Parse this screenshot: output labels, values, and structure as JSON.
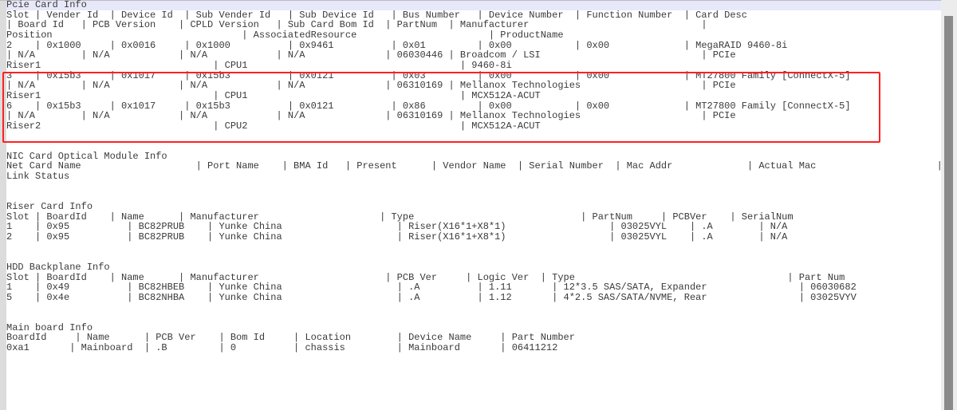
{
  "colors": {
    "highlight_box": "#ff2020",
    "current_line": "#e8e8fb",
    "text": "#3a3a3a"
  },
  "lines": [
    "Pcie Card Info",
    "Slot | Vender Id  | Device Id  | Sub Vender Id   | Sub Device Id   | Bus Number   | Device Number  | Function Number  | Card Desc",
    "| Board Id   | PCB Version    | CPLD Version   | Sub Card Bom Id  | PartNum  | Manufacturer                              | ",
    "Position                                 | AssociatedResource                       | ProductName",
    "2    | 0x1000     | 0x0016     | 0x1000          | 0x9461          | 0x01         | 0x00           | 0x00             | MegaRAID 9460-8i",
    "| N/A        | N/A            | N/A            | N/A              | 06030446 | Broadcom / LSI                            | PCIe",
    "Riser1                              | CPU1                                     | 9460-8i",
    "3    | 0x15b3     | 0x1017     | 0x15b3          | 0x0121          | 0x03         | 0x00           | 0x00             | MT27800 Family [ConnectX-5]",
    "| N/A        | N/A            | N/A            | N/A              | 06310169 | Mellanox Technologies                     | PCIe",
    "Riser1                              | CPU1                                     | MCX512A-ACUT",
    "6    | 0x15b3     | 0x1017     | 0x15b3          | 0x0121          | 0x86         | 0x00           | 0x00             | MT27800 Family [ConnectX-5]",
    "| N/A        | N/A            | N/A            | N/A              | 06310169 | Mellanox Technologies                     | PCIe",
    "Riser2                              | CPU2                                     | MCX512A-ACUT",
    "",
    "",
    "NIC Card Optical Module Info",
    "Net Card Name                    | Port Name    | BMA Id   | Present      | Vendor Name  | Serial Number  | Mac Addr             | Actual Mac                     |",
    "Link Status",
    "",
    "",
    "Riser Card Info",
    "Slot | BoardId    | Name      | Manufacturer                     | Type                             | PartNum     | PCBVer    | SerialNum",
    "1    | 0x95          | BC82PRUB    | Yunke China                    | Riser(X16*1+X8*1)                  | 03025VYL    | .A        | N/A",
    "2    | 0x95          | BC82PRUB    | Yunke China                    | Riser(X16*1+X8*1)                  | 03025VYL    | .A        | N/A",
    "",
    "",
    "HDD Backplane Info",
    "Slot | BoardId    | Name      | Manufacturer                      | PCB Ver     | Logic Ver  | Type                                     | Part Num",
    "1    | 0x49          | BC82HBEB    | Yunke China                    | .A          | 1.11       | 12*3.5 SAS/SATA, Expander                | 06030682",
    "5    | 0x4e          | BC82NHBA    | Yunke China                    | .A          | 1.12       | 4*2.5 SAS/SATA/NVME, Rear                | 03025VYV",
    "",
    "",
    "Main board Info",
    "BoardId     | Name      | PCB Ver    | Bom Id     | Location        | Device Name     | Part Number",
    "0xa1       | Mainboard  | .B         | 0          | chassis         | Mainboard       | 06411212"
  ]
}
